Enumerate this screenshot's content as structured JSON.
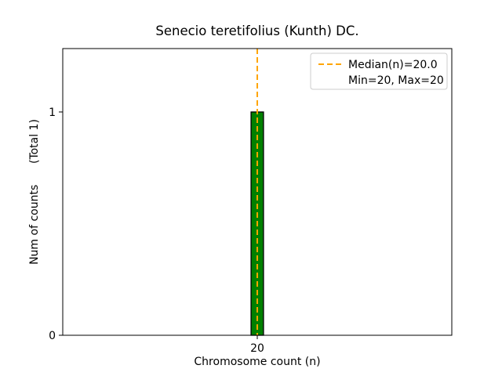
{
  "chart_data": {
    "type": "bar",
    "title": "Senecio teretifolius (Kunth) DC.",
    "xlabel": "Chromosome count (n)",
    "ylabel": "Num of counts",
    "ylabel_secondary": "(Total 1)",
    "categories": [
      20
    ],
    "values": [
      1
    ],
    "bar_color": "#008000",
    "bar_edge_color": "#000000",
    "bar_width": 0.04,
    "xlim": [
      19.375,
      20.625
    ],
    "ylim": [
      0,
      1.284
    ],
    "yticks": [
      0,
      1
    ],
    "xticks": [
      20
    ],
    "grid": false,
    "median_line": {
      "x": 20,
      "color": "#FFA500",
      "style": "dashed"
    },
    "legend": {
      "position": "upper right",
      "entries": [
        {
          "label": "Median(n)=20.0",
          "marker": "dashed-line",
          "marker_color": "#FFA500"
        },
        {
          "label": "Min=20, Max=20",
          "marker": "none"
        }
      ]
    }
  }
}
